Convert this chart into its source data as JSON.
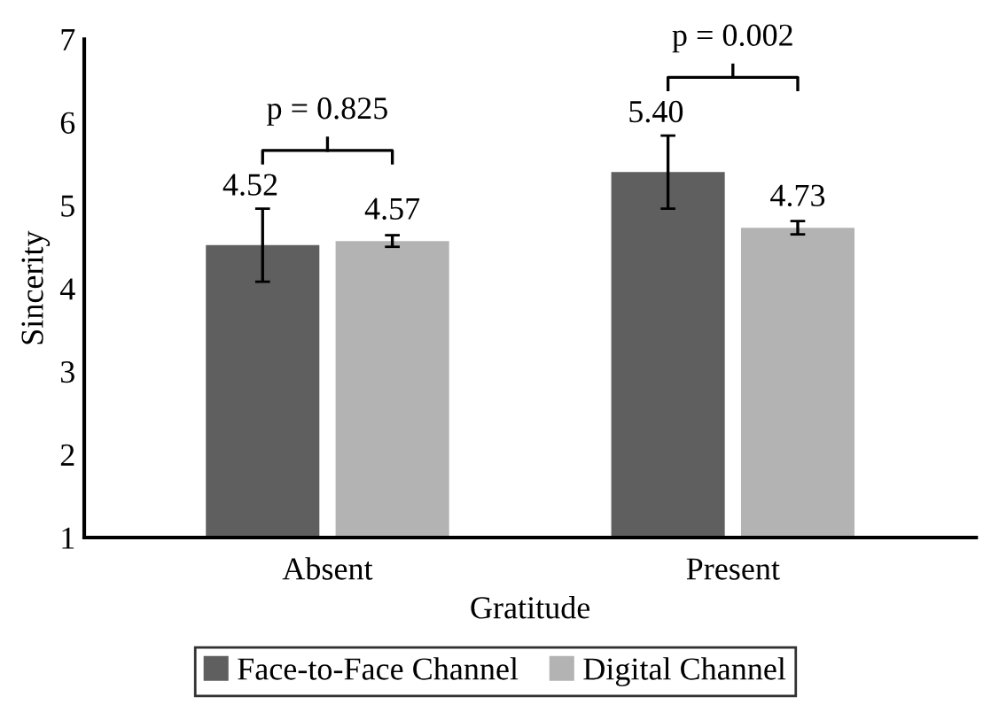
{
  "chart_data": {
    "type": "bar",
    "xlabel": "Gratitude",
    "ylabel": "Sincerity",
    "categories": [
      "Absent",
      "Present"
    ],
    "series": [
      {
        "name": "Face-to-Face Channel",
        "color": "#5f5f5f",
        "values": [
          4.52,
          5.4
        ],
        "errors": [
          0.44,
          0.44
        ],
        "value_labels": [
          "4.52",
          "5.40"
        ]
      },
      {
        "name": "Digital Channel",
        "color": "#b3b3b3",
        "values": [
          4.57,
          4.73
        ],
        "errors": [
          0.07,
          0.08
        ],
        "value_labels": [
          "4.57",
          "4.73"
        ]
      }
    ],
    "ylim": [
      1,
      7
    ],
    "yticks": [
      1,
      2,
      3,
      4,
      5,
      6,
      7
    ],
    "grid": false,
    "legend": "bottom",
    "annotations": [
      "p = 0.825",
      "p = 0.002"
    ]
  }
}
